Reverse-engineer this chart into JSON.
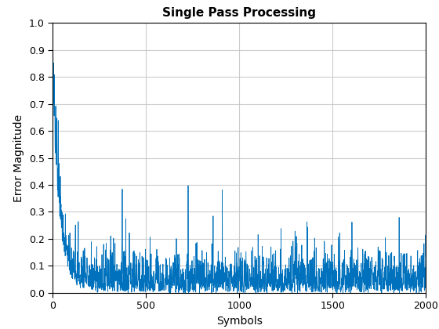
{
  "title": "Single Pass Processing",
  "xlabel": "Symbols",
  "ylabel": "Error Magnitude",
  "xlim": [
    0,
    2000
  ],
  "ylim": [
    0,
    1.0
  ],
  "n_symbols": 2000,
  "line_color": "#0072BD",
  "line_width": 0.6,
  "background_color": "#ffffff",
  "grid_color": "#c0c0c0",
  "xticks": [
    0,
    500,
    1000,
    1500,
    2000
  ],
  "yticks": [
    0,
    0.1,
    0.2,
    0.3,
    0.4,
    0.5,
    0.6,
    0.7,
    0.8,
    0.9,
    1.0
  ],
  "seed": 12345,
  "title_fontsize": 11,
  "label_fontsize": 10,
  "tick_fontsize": 9
}
